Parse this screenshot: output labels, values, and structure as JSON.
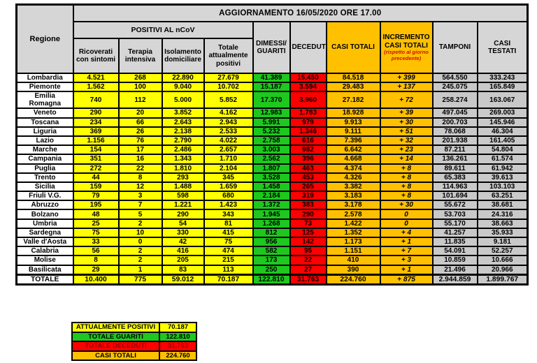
{
  "title_banner": "AGGIORNAMENTO 16/05/2020 ORE 17.00",
  "header": {
    "regione": "Regione",
    "positivi_group": "POSITIVI AL nCoV",
    "ricoverati": "Ricoverati con sintomi",
    "terapia": "Terapia intensiva",
    "isolamento": "Isolamento domiciliare",
    "totale_attualmente_positivi": "Totale attualmente positivi",
    "dimessi_guariti": "DIMESSI/ GUARITI",
    "deceduti": "DECEDUTI",
    "casi_totali": "CASI TOTALI",
    "incremento_casi_totali": "INCREMENTO CASI TOTALI",
    "incremento_note": "(rispetto al giorno precedente)",
    "tamponi": "TAMPONI",
    "casi_testati": "CASI TESTATI"
  },
  "chart_data": {
    "type": "table",
    "title": "AGGIORNAMENTO 16/05/2020 ORE 17.00",
    "columns": [
      "Regione",
      "Ricoverati con sintomi",
      "Terapia intensiva",
      "Isolamento domiciliare",
      "Totale attualmente positivi",
      "DIMESSI/GUARITI",
      "DECEDUTI",
      "CASI TOTALI",
      "INCREMENTO CASI TOTALI (rispetto al giorno precedente)",
      "TAMPONI",
      "CASI TESTATI"
    ],
    "rows": [
      {
        "regione": "Lombardia",
        "values": [
          "4.521",
          "268",
          "22.890",
          "27.679",
          "41.389",
          "15.450",
          "84.518",
          "+ 399",
          "564.550",
          "333.243"
        ]
      },
      {
        "regione": "Piemonte",
        "values": [
          "1.562",
          "100",
          "9.040",
          "10.702",
          "15.187",
          "3.594",
          "29.483",
          "+ 137",
          "245.075",
          "165.849"
        ]
      },
      {
        "regione": "Emilia Romagna",
        "values": [
          "740",
          "112",
          "5.000",
          "5.852",
          "17.370",
          "3.960",
          "27.182",
          "+ 72",
          "258.274",
          "163.067"
        ]
      },
      {
        "regione": "Veneto",
        "values": [
          "290",
          "20",
          "3.852",
          "4.162",
          "12.983",
          "1.783",
          "18.928",
          "+ 39",
          "497.045",
          "269.003"
        ]
      },
      {
        "regione": "Toscana",
        "values": [
          "234",
          "66",
          "2.643",
          "2.943",
          "5.991",
          "979",
          "9.913",
          "+ 30",
          "200.703",
          "145.946"
        ]
      },
      {
        "regione": "Liguria",
        "values": [
          "369",
          "26",
          "2.138",
          "2.533",
          "5.232",
          "1.346",
          "9.111",
          "+ 51",
          "78.068",
          "46.304"
        ]
      },
      {
        "regione": "Lazio",
        "values": [
          "1.156",
          "76",
          "2.790",
          "4.022",
          "2.758",
          "616",
          "7.396",
          "+ 32",
          "201.938",
          "161.405"
        ]
      },
      {
        "regione": "Marche",
        "values": [
          "154",
          "17",
          "2.486",
          "2.657",
          "3.003",
          "982",
          "6.642",
          "+ 23",
          "87.211",
          "54.804"
        ]
      },
      {
        "regione": "Campania",
        "values": [
          "351",
          "16",
          "1.343",
          "1.710",
          "2.562",
          "396",
          "4.668",
          "+ 14",
          "136.261",
          "61.574"
        ]
      },
      {
        "regione": "Puglia",
        "values": [
          "272",
          "22",
          "1.810",
          "2.104",
          "1.807",
          "463",
          "4.374",
          "+ 8",
          "89.611",
          "61.942"
        ]
      },
      {
        "regione": "Trento",
        "values": [
          "44",
          "8",
          "293",
          "345",
          "3.528",
          "453",
          "4.326",
          "+ 8",
          "65.383",
          "39.613"
        ]
      },
      {
        "regione": "Sicilia",
        "values": [
          "159",
          "12",
          "1.488",
          "1.659",
          "1.458",
          "265",
          "3.382",
          "+ 8",
          "114.963",
          "103.103"
        ]
      },
      {
        "regione": "Friuli V.G.",
        "values": [
          "79",
          "3",
          "598",
          "680",
          "2.184",
          "319",
          "3.183",
          "+ 8",
          "101.694",
          "63.251"
        ]
      },
      {
        "regione": "Abruzzo",
        "values": [
          "195",
          "7",
          "1.221",
          "1.423",
          "1.372",
          "383",
          "3.178",
          "+ 30",
          "55.672",
          "38.681"
        ]
      },
      {
        "regione": "Bolzano",
        "values": [
          "48",
          "5",
          "290",
          "343",
          "1.945",
          "290",
          "2.578",
          "0",
          "53.703",
          "24.316"
        ]
      },
      {
        "regione": "Umbria",
        "values": [
          "25",
          "2",
          "54",
          "81",
          "1.268",
          "73",
          "1.422",
          "0",
          "55.170",
          "38.663"
        ]
      },
      {
        "regione": "Sardegna",
        "values": [
          "75",
          "10",
          "330",
          "415",
          "812",
          "125",
          "1.352",
          "+ 4",
          "41.257",
          "35.933"
        ]
      },
      {
        "regione": "Valle d'Aosta",
        "values": [
          "33",
          "0",
          "42",
          "75",
          "956",
          "142",
          "1.173",
          "+ 1",
          "11.835",
          "9.181"
        ]
      },
      {
        "regione": "Calabria",
        "values": [
          "56",
          "2",
          "416",
          "474",
          "582",
          "95",
          "1.151",
          "+ 7",
          "54.091",
          "52.257"
        ]
      },
      {
        "regione": "Molise",
        "values": [
          "8",
          "2",
          "205",
          "215",
          "173",
          "22",
          "410",
          "+ 3",
          "10.859",
          "10.666"
        ]
      },
      {
        "regione": "Basilicata",
        "values": [
          "29",
          "1",
          "83",
          "113",
          "250",
          "27",
          "390",
          "+ 1",
          "21.496",
          "20.966"
        ]
      }
    ],
    "totale": {
      "regione": "TOTALE",
      "values": [
        "10.400",
        "775",
        "59.012",
        "70.187",
        "122.810",
        "31.763",
        "224.760",
        "+ 875",
        "2.944.859",
        "1.899.767"
      ]
    }
  },
  "summary": {
    "items": [
      {
        "label": "ATTUALMENTE POSITIVI",
        "value": "70.187",
        "bg": "#ffff00",
        "text": "#000000"
      },
      {
        "label": "TOTALE GUARITI",
        "value": "122.810",
        "bg": "#1ec81e",
        "text": "#000000"
      },
      {
        "label": "TOTALE DECEDUTI",
        "value": "31.763",
        "bg": "#ff0000",
        "text": "#990000"
      },
      {
        "label": "CASI TOTALI",
        "value": "224.760",
        "bg": "#ffc000",
        "text": "#000000"
      }
    ]
  },
  "colors": {
    "yellow": "#ffff00",
    "green": "#1ec81e",
    "red": "#ff0000",
    "red_text": "#990000",
    "orange": "#ffc000",
    "orange_inc_text": "#7f3300",
    "gray_cell": "#c9c9c9",
    "header_gray": "#d6d6d6"
  }
}
